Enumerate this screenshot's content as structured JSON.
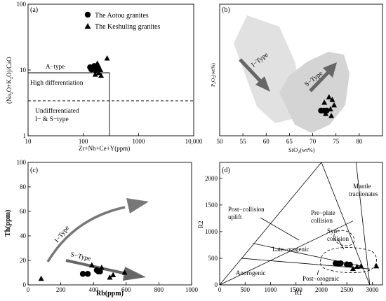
{
  "chart_data": [
    {
      "panel_label": "(a)",
      "type": "scatter",
      "x_scale": "log",
      "y_scale": "log",
      "xlim": [
        10,
        10000
      ],
      "ylim": [
        1,
        100
      ],
      "x_ticks": [
        "10",
        "100",
        "1000",
        "10,000"
      ],
      "y_ticks": [
        "1",
        "10",
        "100"
      ],
      "xlabel": "Zr+Nb+Ce+Y(ppm)",
      "ylabel_parts": {
        "base": "(Na",
        "sub1": "2",
        "mid": "O+K",
        "sub2": "2",
        "end": "O)/CaO"
      },
      "legend": [
        {
          "name": "The Aotou granites",
          "marker": "circle"
        },
        {
          "name": "The Keshuling granites",
          "marker": "triangle"
        }
      ],
      "annotations": {
        "a_type": "A−type",
        "high_diff": "High differentiation",
        "undiff_1": "Undifferentiated",
        "undiff_2": "I− & S−type"
      },
      "series": [
        {
          "name": "The Aotou granites",
          "marker": "circle",
          "points": [
            [
              133,
              11
            ],
            [
              147,
              10.5
            ],
            [
              158,
              11.5
            ],
            [
              165,
              10
            ],
            [
              172,
              11
            ],
            [
              185,
              10.8
            ],
            [
              140,
              10.2
            ],
            [
              178,
              11.3
            ]
          ]
        },
        {
          "name": "The Keshuling granites",
          "marker": "triangle",
          "points": [
            [
              165,
              8.5
            ],
            [
              190,
              9.0
            ],
            [
              205,
              10
            ],
            [
              270,
              15
            ],
            [
              210,
              8.2
            ],
            [
              180,
              12.5
            ]
          ]
        }
      ]
    },
    {
      "panel_label": "(b)",
      "type": "scatter",
      "xlim": [
        50,
        85
      ],
      "x_ticks": [
        "50",
        "55",
        "60",
        "65",
        "70",
        "75",
        "80"
      ],
      "xlabel": {
        "base": "SiO",
        "sub": "2",
        "end": "(wt%)"
      },
      "ylabel": {
        "base": "P",
        "sub1": "2",
        "mid": "O",
        "sub2": "5",
        "end": "(wt%)"
      },
      "fields": {
        "i_type": "I−Type",
        "s_type": "S−Type"
      },
      "series": [
        {
          "name": "The Aotou granites",
          "marker": "circle",
          "points": [
            [
              71.8,
              0.5
            ],
            [
              72.4,
              0.5
            ],
            [
              73.0,
              0.5
            ]
          ]
        },
        {
          "name": "The Keshuling granites",
          "marker": "triangle",
          "points": [
            [
              72.5,
              0.62
            ],
            [
              73.5,
              0.7
            ],
            [
              74.2,
              0.66
            ],
            [
              74.6,
              0.58
            ],
            [
              73.8,
              0.52
            ],
            [
              74.0,
              0.42
            ],
            [
              72.8,
              0.45
            ]
          ]
        }
      ],
      "ylim_note": "y axis has no tick labels"
    },
    {
      "panel_label": "(c)",
      "type": "scatter",
      "xlim": [
        0,
        1000
      ],
      "ylim": [
        0,
        100
      ],
      "x_ticks": [
        "0",
        "200",
        "400",
        "600",
        "800",
        "1000"
      ],
      "y_ticks": [
        "0",
        "20",
        "40",
        "60",
        "80",
        "100"
      ],
      "xlabel": "Rb(ppm)",
      "ylabel": "Th(ppm)",
      "trends": {
        "i_type": "I−Type",
        "s_type": "S−Type"
      },
      "series": [
        {
          "name": "The Aotou granites",
          "marker": "circle",
          "points": [
            [
              335,
              9
            ],
            [
              365,
              9
            ],
            [
              420,
              12
            ],
            [
              430,
              11
            ],
            [
              440,
              11
            ]
          ]
        },
        {
          "name": "The Keshuling granites",
          "marker": "triangle",
          "points": [
            [
              80,
              5
            ],
            [
              390,
              16
            ],
            [
              450,
              14
            ],
            [
              500,
              6
            ],
            [
              520,
              8
            ],
            [
              590,
              10
            ]
          ]
        }
      ]
    },
    {
      "panel_label": "(d)",
      "type": "scatter",
      "xlim": [
        0,
        3200
      ],
      "ylim": [
        0,
        2300
      ],
      "x_ticks": [
        "0",
        "500",
        "1000",
        "1500",
        "2000",
        "2500",
        "3000"
      ],
      "y_ticks": [
        "0",
        "500",
        "1000",
        "1500",
        "2000"
      ],
      "xlabel": "R1",
      "ylabel": "R2",
      "fields": {
        "mantle_1": "Mantle",
        "mantle_2": "tractionates",
        "post_collision_1": "Post−collision",
        "post_collision_2": "uplift",
        "pre_plate_1": "Pre−plate",
        "pre_plate_2": "collision",
        "syn_1": "Syn−",
        "syn_2": "collision",
        "late": "Late−orogenic",
        "anorogenic": "Anorogenic",
        "post_orogenic": "Post−orogenic"
      },
      "series": [
        {
          "name": "The Aotou granites",
          "marker": "circle",
          "points": [
            [
              2280,
              405
            ],
            [
              2330,
              400
            ],
            [
              2380,
              405
            ],
            [
              2500,
              385
            ],
            [
              2560,
              380
            ]
          ]
        },
        {
          "name": "The Keshuling granites",
          "marker": "triangle",
          "points": [
            [
              2620,
              300
            ],
            [
              2700,
              340
            ],
            [
              2780,
              350
            ],
            [
              3080,
              350
            ]
          ]
        }
      ]
    }
  ]
}
